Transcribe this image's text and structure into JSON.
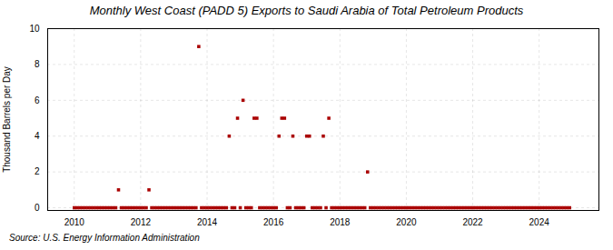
{
  "chart_data": {
    "type": "scatter",
    "title": "Monthly West Coast (PADD 5) Exports to Saudi Arabia of Total Petroleum Products",
    "ylabel": "Thousand Barrels per Day",
    "source": "Source: U.S. Energy Information Administration",
    "color": "#aa0000",
    "marker": "square",
    "grid": true,
    "xlim": [
      2009.2,
      2025.8
    ],
    "xticks": [
      2010,
      2012,
      2014,
      2016,
      2018,
      2020,
      2022,
      2024
    ],
    "ylim": [
      -0.15,
      10
    ],
    "yticks": [
      0,
      2,
      4,
      6,
      8,
      10
    ],
    "x": [
      2010.0,
      2010.083,
      2010.167,
      2010.25,
      2010.333,
      2010.417,
      2010.5,
      2010.583,
      2010.667,
      2010.75,
      2010.833,
      2010.917,
      2011.0,
      2011.083,
      2011.167,
      2011.25,
      2011.333,
      2011.417,
      2011.5,
      2011.583,
      2011.667,
      2011.75,
      2011.833,
      2011.917,
      2012.0,
      2012.083,
      2012.167,
      2012.25,
      2012.333,
      2012.417,
      2012.5,
      2012.583,
      2012.667,
      2012.75,
      2012.833,
      2012.917,
      2013.0,
      2013.083,
      2013.167,
      2013.25,
      2013.333,
      2013.417,
      2013.5,
      2013.583,
      2013.667,
      2013.75,
      2013.833,
      2013.917,
      2014.0,
      2014.083,
      2014.167,
      2014.25,
      2014.333,
      2014.417,
      2014.5,
      2014.583,
      2014.667,
      2014.75,
      2014.833,
      2014.917,
      2015.0,
      2015.083,
      2015.167,
      2015.25,
      2015.333,
      2015.417,
      2015.5,
      2015.583,
      2015.667,
      2015.75,
      2015.833,
      2015.917,
      2016.0,
      2016.083,
      2016.167,
      2016.25,
      2016.333,
      2016.417,
      2016.5,
      2016.583,
      2016.667,
      2016.75,
      2016.833,
      2016.917,
      2017.0,
      2017.083,
      2017.167,
      2017.25,
      2017.333,
      2017.417,
      2017.5,
      2017.583,
      2017.667,
      2017.75,
      2017.833,
      2017.917,
      2018.0,
      2018.083,
      2018.167,
      2018.25,
      2018.333,
      2018.417,
      2018.5,
      2018.583,
      2018.667,
      2018.75,
      2018.833,
      2018.917,
      2019.0,
      2019.083,
      2019.167,
      2019.25,
      2019.333,
      2019.417,
      2019.5,
      2019.583,
      2019.667,
      2019.75,
      2019.833,
      2019.917,
      2020.0,
      2020.083,
      2020.167,
      2020.25,
      2020.333,
      2020.417,
      2020.5,
      2020.583,
      2020.667,
      2020.75,
      2020.833,
      2020.917,
      2021.0,
      2021.083,
      2021.167,
      2021.25,
      2021.333,
      2021.417,
      2021.5,
      2021.583,
      2021.667,
      2021.75,
      2021.833,
      2021.917,
      2022.0,
      2022.083,
      2022.167,
      2022.25,
      2022.333,
      2022.417,
      2022.5,
      2022.583,
      2022.667,
      2022.75,
      2022.833,
      2022.917,
      2023.0,
      2023.083,
      2023.167,
      2023.25,
      2023.333,
      2023.417,
      2023.5,
      2023.583,
      2023.667,
      2023.75,
      2023.833,
      2023.917,
      2024.0,
      2024.083,
      2024.167,
      2024.25,
      2024.333,
      2024.417,
      2024.5,
      2024.583,
      2024.667,
      2024.75,
      2024.833,
      2024.917
    ],
    "values": [
      0,
      0,
      0,
      0,
      0,
      0,
      0,
      0,
      0,
      0,
      0,
      0,
      0,
      0,
      0,
      0,
      1,
      0,
      0,
      0,
      0,
      0,
      0,
      0,
      0,
      0,
      0,
      1,
      0,
      0,
      0,
      0,
      0,
      0,
      0,
      0,
      0,
      0,
      0,
      0,
      0,
      0,
      0,
      0,
      0,
      9,
      0,
      0,
      0,
      0,
      0,
      0,
      0,
      0,
      0,
      0,
      4,
      0,
      0,
      5,
      0,
      6,
      0,
      0,
      0,
      5,
      5,
      0,
      0,
      0,
      0,
      0,
      0,
      0,
      4,
      5,
      5,
      0,
      0,
      4,
      0,
      0,
      0,
      0,
      4,
      4,
      0,
      0,
      0,
      0,
      4,
      0,
      5,
      0,
      0,
      0,
      0,
      0,
      0,
      0,
      0,
      0,
      0,
      0,
      0,
      0,
      2,
      0,
      0,
      0,
      0,
      0,
      0,
      0,
      0,
      0,
      0,
      0,
      0,
      0,
      0,
      0,
      0,
      0,
      0,
      0,
      0,
      0,
      0,
      0,
      0,
      0,
      0,
      0,
      0,
      0,
      0,
      0,
      0,
      0,
      0,
      0,
      0,
      0,
      0,
      0,
      0,
      0,
      0,
      0,
      0,
      0,
      0,
      0,
      0,
      0,
      0,
      0,
      0,
      0,
      0,
      0,
      0,
      0,
      0,
      0,
      0,
      0,
      0,
      0,
      0,
      0,
      0,
      0,
      0,
      0,
      0,
      0,
      0,
      0
    ]
  }
}
